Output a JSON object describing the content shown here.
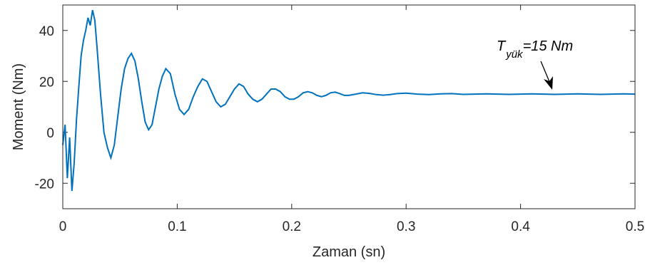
{
  "chart_data": {
    "type": "line",
    "xlabel": "Zaman (sn)",
    "ylabel": "Moment (Nm)",
    "xlim": [
      0,
      0.5
    ],
    "ylim": [
      -30,
      50
    ],
    "xticks": [
      0,
      0.1,
      0.2,
      0.3,
      0.4,
      0.5
    ],
    "xtick_labels": [
      "0",
      "0.1",
      "0.2",
      "0.3",
      "0.4",
      "0.5"
    ],
    "yticks": [
      -20,
      0,
      20,
      40
    ],
    "ytick_labels": [
      "-20",
      "0",
      "20",
      "40"
    ],
    "grid": false,
    "line_color": "#0072BD",
    "series": [
      {
        "x": [
          0.0,
          0.002,
          0.004,
          0.006,
          0.008,
          0.01,
          0.012,
          0.014,
          0.016,
          0.018,
          0.02,
          0.022,
          0.024,
          0.026,
          0.028,
          0.03,
          0.033,
          0.036,
          0.039,
          0.042,
          0.045,
          0.048,
          0.051,
          0.054,
          0.057,
          0.06,
          0.063,
          0.066,
          0.069,
          0.072,
          0.075,
          0.078,
          0.081,
          0.084,
          0.087,
          0.09,
          0.094,
          0.098,
          0.102,
          0.106,
          0.11,
          0.114,
          0.118,
          0.122,
          0.126,
          0.13,
          0.134,
          0.138,
          0.142,
          0.146,
          0.15,
          0.154,
          0.158,
          0.162,
          0.166,
          0.17,
          0.174,
          0.178,
          0.182,
          0.186,
          0.19,
          0.194,
          0.198,
          0.202,
          0.206,
          0.21,
          0.214,
          0.218,
          0.222,
          0.226,
          0.23,
          0.234,
          0.238,
          0.242,
          0.246,
          0.25,
          0.256,
          0.262,
          0.268,
          0.274,
          0.28,
          0.286,
          0.292,
          0.3,
          0.31,
          0.32,
          0.33,
          0.34,
          0.35,
          0.36,
          0.37,
          0.38,
          0.39,
          0.4,
          0.41,
          0.42,
          0.43,
          0.44,
          0.45,
          0.46,
          0.47,
          0.48,
          0.49,
          0.5
        ],
        "y": [
          -5,
          3,
          -18,
          -2,
          -23,
          -12,
          5,
          18,
          30,
          36,
          40,
          45,
          42,
          48,
          44,
          33,
          15,
          0,
          -6,
          -10,
          -5,
          6,
          17,
          25,
          29,
          31,
          28,
          21,
          12,
          4,
          1,
          3,
          10,
          17,
          22,
          25,
          23,
          15,
          9,
          7,
          9,
          14,
          18,
          21,
          20,
          16,
          12,
          10,
          11,
          14,
          17,
          19,
          18,
          15,
          13,
          12,
          13,
          15,
          17,
          17,
          16,
          14,
          13,
          13,
          14,
          15.5,
          16,
          15.5,
          14.5,
          14,
          14.5,
          15.5,
          15.8,
          15.2,
          14.5,
          14.5,
          15,
          15.5,
          15.3,
          14.8,
          14.6,
          14.8,
          15.2,
          15.4,
          15,
          14.8,
          15.1,
          15.2,
          14.9,
          15,
          15.1,
          15,
          14.9,
          15,
          15.1,
          15,
          14.9,
          15,
          15.1,
          15,
          14.9,
          15,
          15.1,
          15
        ]
      }
    ],
    "annotation": {
      "text_main": "T",
      "text_sub": "yük",
      "text_rest": "=15 Nm",
      "point": [
        0.428,
        15.5
      ]
    }
  }
}
